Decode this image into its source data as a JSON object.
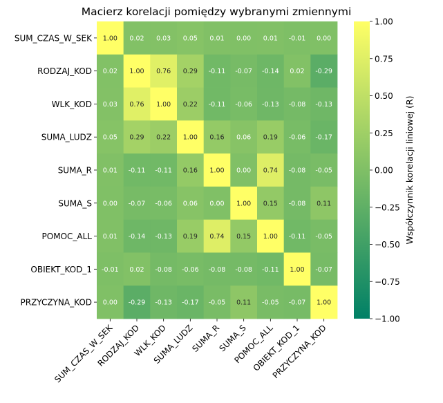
{
  "chart_data": {
    "type": "heatmap",
    "title": "Macierz korelacji pomiędzy wybranymi zmiennymi",
    "variables": [
      "SUM_CZAS_W_SEK",
      "RODZAJ_KOD",
      "WLK_KOD",
      "SUMA_LUDZ",
      "SUMA_R",
      "SUMA_S",
      "POMOC_ALL",
      "OBIEKT_KOD_1",
      "PRZYCZYNA_KOD"
    ],
    "matrix": [
      [
        1.0,
        0.02,
        0.03,
        0.05,
        0.01,
        0.0,
        0.01,
        -0.01,
        0.0
      ],
      [
        0.02,
        1.0,
        0.76,
        0.29,
        -0.11,
        -0.07,
        -0.14,
        0.02,
        -0.29
      ],
      [
        0.03,
        0.76,
        1.0,
        0.22,
        -0.11,
        -0.06,
        -0.13,
        -0.08,
        -0.13
      ],
      [
        0.05,
        0.29,
        0.22,
        1.0,
        0.16,
        0.06,
        0.19,
        -0.06,
        -0.17
      ],
      [
        0.01,
        -0.11,
        -0.11,
        0.16,
        1.0,
        0.0,
        0.74,
        -0.08,
        -0.05
      ],
      [
        0.0,
        -0.07,
        -0.06,
        0.06,
        0.0,
        1.0,
        0.15,
        -0.08,
        0.11
      ],
      [
        0.01,
        -0.14,
        -0.13,
        0.19,
        0.74,
        0.15,
        1.0,
        -0.11,
        -0.05
      ],
      [
        -0.01,
        0.02,
        -0.08,
        -0.06,
        -0.08,
        -0.08,
        -0.11,
        1.0,
        -0.07
      ],
      [
        0.0,
        -0.29,
        -0.13,
        -0.17,
        -0.05,
        0.11,
        -0.05,
        -0.07,
        1.0
      ]
    ],
    "colorbar": {
      "label": "Współczynnik korelacji liniowej (R)",
      "range": [
        -1.0,
        1.0
      ],
      "ticks": [
        1.0,
        0.75,
        0.5,
        0.25,
        0.0,
        -0.25,
        -0.5,
        -0.75,
        -1.0
      ],
      "tick_labels": [
        "1.00",
        "0.75",
        "0.50",
        "0.25",
        "0.00",
        "−0.25",
        "−0.50",
        "−0.75",
        "−1.00"
      ],
      "colors": {
        "low": "#008066",
        "high": "#ffff66"
      }
    }
  }
}
